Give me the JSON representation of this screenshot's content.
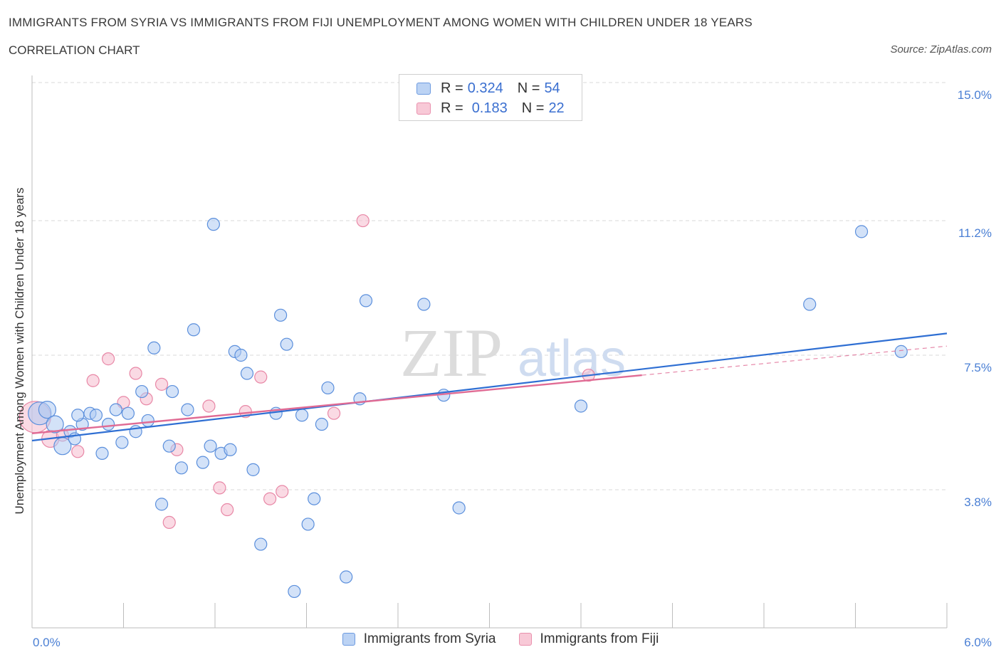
{
  "header": {
    "title": "IMMIGRANTS FROM SYRIA VS IMMIGRANTS FROM FIJI UNEMPLOYMENT AMONG WOMEN WITH CHILDREN UNDER 18 YEARS",
    "subtitle": "CORRELATION CHART",
    "source": "Source: ZipAtlas.com"
  },
  "legend": {
    "syria": {
      "r_label": "R =",
      "r_value": "0.324",
      "n_label": "N =",
      "n_value": "54"
    },
    "fiji": {
      "r_label": "R =",
      "r_value": "0.183",
      "n_label": "N =",
      "n_value": "22"
    }
  },
  "bottom_legend": {
    "syria": "Immigrants from Syria",
    "fiji": "Immigrants from Fiji"
  },
  "colors": {
    "syria_fill": "#aecbf2",
    "syria_stroke": "#5b8fdc",
    "syria_line": "#2f6fd3",
    "fiji_fill": "#f6bccd",
    "fiji_stroke": "#e887a6",
    "fiji_line": "#e06b94",
    "grid": "#d9d9d9",
    "tick_text": "#4a7fd4"
  },
  "watermark": {
    "zip": "ZIP",
    "atlas": "atlas"
  },
  "chart_data": {
    "type": "scatter",
    "title": "IMMIGRANTS FROM SYRIA VS IMMIGRANTS FROM FIJI UNEMPLOYMENT AMONG WOMEN WITH CHILDREN UNDER 18 YEARS",
    "xlabel": "",
    "ylabel": "Unemployment Among Women with Children Under 18 years",
    "xlim": [
      0,
      6.0
    ],
    "ylim": [
      0,
      15.0
    ],
    "x_tick_labels": [
      "0.0%",
      "6.0%"
    ],
    "y_ticks": [
      3.8,
      7.5,
      11.2,
      15.0
    ],
    "y_tick_labels": [
      "3.8%",
      "7.5%",
      "11.2%",
      "15.0%"
    ],
    "grid": true,
    "series": [
      {
        "name": "Immigrants from Syria",
        "r": 0.324,
        "n": 54,
        "trend": {
          "x": [
            0.0,
            6.0
          ],
          "y": [
            5.15,
            8.1
          ]
        },
        "points": [
          {
            "x": 0.05,
            "y": 5.9,
            "s": "l"
          },
          {
            "x": 0.1,
            "y": 6.0,
            "s": "m"
          },
          {
            "x": 0.15,
            "y": 5.6,
            "s": "m"
          },
          {
            "x": 0.2,
            "y": 5.0,
            "s": "m"
          },
          {
            "x": 0.25,
            "y": 5.4
          },
          {
            "x": 0.28,
            "y": 5.2
          },
          {
            "x": 0.33,
            "y": 5.6
          },
          {
            "x": 0.38,
            "y": 5.9
          },
          {
            "x": 0.42,
            "y": 5.85
          },
          {
            "x": 0.46,
            "y": 4.8
          },
          {
            "x": 0.5,
            "y": 5.6
          },
          {
            "x": 0.55,
            "y": 6.0
          },
          {
            "x": 0.59,
            "y": 5.1
          },
          {
            "x": 0.63,
            "y": 5.9
          },
          {
            "x": 0.68,
            "y": 5.4
          },
          {
            "x": 0.72,
            "y": 6.5
          },
          {
            "x": 0.76,
            "y": 5.7
          },
          {
            "x": 0.8,
            "y": 7.7
          },
          {
            "x": 0.85,
            "y": 3.4
          },
          {
            "x": 0.9,
            "y": 5.0
          },
          {
            "x": 0.92,
            "y": 6.5
          },
          {
            "x": 0.98,
            "y": 4.4
          },
          {
            "x": 1.02,
            "y": 6.0
          },
          {
            "x": 1.06,
            "y": 8.2
          },
          {
            "x": 1.12,
            "y": 4.55
          },
          {
            "x": 1.17,
            "y": 5.0
          },
          {
            "x": 1.19,
            "y": 11.1
          },
          {
            "x": 1.24,
            "y": 4.8
          },
          {
            "x": 1.3,
            "y": 4.9
          },
          {
            "x": 1.33,
            "y": 7.6
          },
          {
            "x": 1.37,
            "y": 7.5
          },
          {
            "x": 1.41,
            "y": 7.0
          },
          {
            "x": 1.45,
            "y": 4.35
          },
          {
            "x": 1.5,
            "y": 2.3
          },
          {
            "x": 1.6,
            "y": 5.9
          },
          {
            "x": 1.63,
            "y": 8.6
          },
          {
            "x": 1.67,
            "y": 7.8
          },
          {
            "x": 1.72,
            "y": 1.0
          },
          {
            "x": 1.77,
            "y": 5.85
          },
          {
            "x": 1.81,
            "y": 2.85
          },
          {
            "x": 1.85,
            "y": 3.55
          },
          {
            "x": 1.9,
            "y": 5.6
          },
          {
            "x": 1.94,
            "y": 6.6
          },
          {
            "x": 2.06,
            "y": 1.4
          },
          {
            "x": 2.15,
            "y": 6.3
          },
          {
            "x": 2.19,
            "y": 9.0
          },
          {
            "x": 2.57,
            "y": 8.9
          },
          {
            "x": 2.7,
            "y": 6.4
          },
          {
            "x": 2.8,
            "y": 3.3
          },
          {
            "x": 3.6,
            "y": 6.1
          },
          {
            "x": 5.1,
            "y": 8.9
          },
          {
            "x": 5.44,
            "y": 10.9
          },
          {
            "x": 5.7,
            "y": 7.6
          },
          {
            "x": 0.3,
            "y": 5.85
          }
        ]
      },
      {
        "name": "Immigrants from Fiji",
        "r": 0.183,
        "n": 22,
        "trend": {
          "x": [
            0.0,
            4.0
          ],
          "y": [
            5.35,
            6.95
          ]
        },
        "trend_extension": {
          "x": [
            4.0,
            6.0
          ],
          "y": [
            6.95,
            7.75
          ]
        },
        "points": [
          {
            "x": 0.02,
            "y": 5.8,
            "s": "xl"
          },
          {
            "x": 0.12,
            "y": 5.2,
            "s": "m"
          },
          {
            "x": 0.3,
            "y": 4.85
          },
          {
            "x": 0.4,
            "y": 6.8
          },
          {
            "x": 0.5,
            "y": 7.4
          },
          {
            "x": 0.6,
            "y": 6.2
          },
          {
            "x": 0.68,
            "y": 7.0
          },
          {
            "x": 0.75,
            "y": 6.3
          },
          {
            "x": 0.85,
            "y": 6.7
          },
          {
            "x": 0.9,
            "y": 2.9
          },
          {
            "x": 0.95,
            "y": 4.9
          },
          {
            "x": 1.16,
            "y": 6.1
          },
          {
            "x": 1.23,
            "y": 3.85
          },
          {
            "x": 1.28,
            "y": 3.25
          },
          {
            "x": 1.4,
            "y": 5.95
          },
          {
            "x": 1.5,
            "y": 6.9
          },
          {
            "x": 1.56,
            "y": 3.55
          },
          {
            "x": 1.64,
            "y": 3.75
          },
          {
            "x": 1.98,
            "y": 5.9
          },
          {
            "x": 2.17,
            "y": 11.2
          },
          {
            "x": 3.65,
            "y": 6.95
          },
          {
            "x": 0.2,
            "y": 5.3
          }
        ]
      }
    ]
  }
}
